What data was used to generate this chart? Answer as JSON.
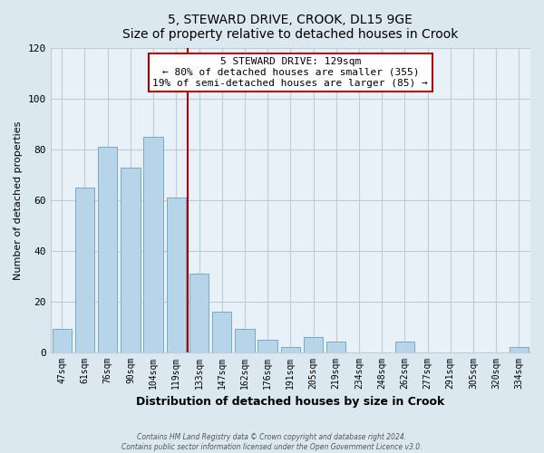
{
  "title": "5, STEWARD DRIVE, CROOK, DL15 9GE",
  "subtitle": "Size of property relative to detached houses in Crook",
  "xlabel": "Distribution of detached houses by size in Crook",
  "ylabel": "Number of detached properties",
  "categories": [
    "47sqm",
    "61sqm",
    "76sqm",
    "90sqm",
    "104sqm",
    "119sqm",
    "133sqm",
    "147sqm",
    "162sqm",
    "176sqm",
    "191sqm",
    "205sqm",
    "219sqm",
    "234sqm",
    "248sqm",
    "262sqm",
    "277sqm",
    "291sqm",
    "305sqm",
    "320sqm",
    "334sqm"
  ],
  "values": [
    9,
    65,
    81,
    73,
    85,
    61,
    31,
    16,
    9,
    5,
    2,
    6,
    4,
    0,
    0,
    4,
    0,
    0,
    0,
    0,
    2
  ],
  "bar_color": "#b8d4e8",
  "bar_edge_color": "#7aaac8",
  "vline_x_index": 5.5,
  "vline_color": "#aa0000",
  "box_text_lines": [
    "5 STEWARD DRIVE: 129sqm",
    "← 80% of detached houses are smaller (355)",
    "19% of semi-detached houses are larger (85) →"
  ],
  "ylim": [
    0,
    120
  ],
  "yticks": [
    0,
    20,
    40,
    60,
    80,
    100,
    120
  ],
  "footer_line1": "Contains HM Land Registry data © Crown copyright and database right 2024.",
  "footer_line2": "Contains public sector information licensed under the Open Government Licence v3.0.",
  "bg_color": "#dce8f0",
  "plot_bg_color": "#e8f0f8",
  "grid_color": "#c0ccd8"
}
